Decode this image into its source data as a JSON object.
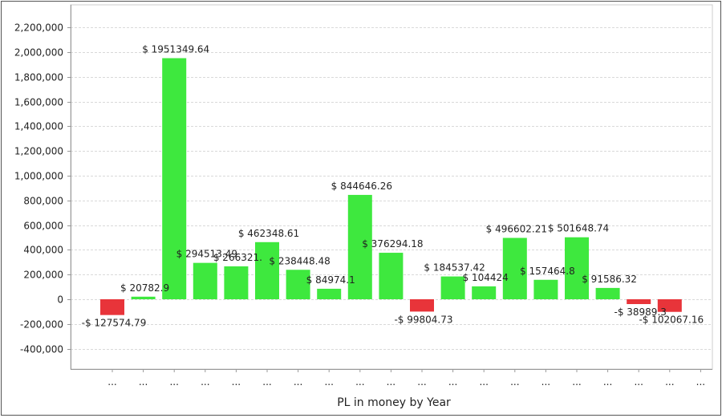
{
  "chart_data": {
    "type": "bar",
    "title": "",
    "xlabel": "PL in money by Year",
    "ylabel": "",
    "ylim": [
      -500000,
      2300000
    ],
    "yticks": [
      2200000,
      2000000,
      1800000,
      1600000,
      1400000,
      1200000,
      1000000,
      800000,
      600000,
      400000,
      200000,
      0,
      -200000,
      -400000
    ],
    "ytick_labels": [
      "2,200,000",
      "2,000,000",
      "1,800,000",
      "1,600,000",
      "1,400,000",
      "1,200,000",
      "1,000,000",
      "800,000",
      "600,000",
      "400,000",
      "200,000",
      "0",
      "-200,000",
      "-400,000"
    ],
    "grid": true,
    "categories": [
      "...",
      "...",
      "...",
      "...",
      "...",
      "...",
      "...",
      "...",
      "...",
      "...",
      "...",
      "...",
      "...",
      "...",
      "...",
      "...",
      "...",
      "...",
      "...",
      "..."
    ],
    "values": [
      -127574.79,
      20782.9,
      1951349.64,
      294513.49,
      266321,
      462348.61,
      238448.48,
      84974.1,
      844646.26,
      376294.18,
      -99804.73,
      184537.42,
      104424,
      496602.21,
      157464.8,
      501648.74,
      91586.32,
      -38989.3,
      -102067.16,
      0
    ],
    "data_labels": [
      "-$ 127574.79",
      "$ 20782.9",
      "$ 1951349.64",
      "$ 294513.49",
      "$ 266321.",
      "$ 462348.61",
      "$ 238448.48",
      "$ 84974.1",
      "$ 844646.26",
      "$ 376294.18",
      "-$ 99804.73",
      "$ 184537.42",
      "$ 104424",
      "$ 496602.21",
      "$ 157464.8",
      "$ 501648.74",
      "$ 91586.32",
      "-$ 38989.3",
      "-$ 102067.16",
      ""
    ],
    "colors": {
      "positive": "#3ee83e",
      "negative": "#e8343a",
      "grid": "#d9d9d9",
      "axis": "#999999",
      "text": "#222222"
    }
  }
}
